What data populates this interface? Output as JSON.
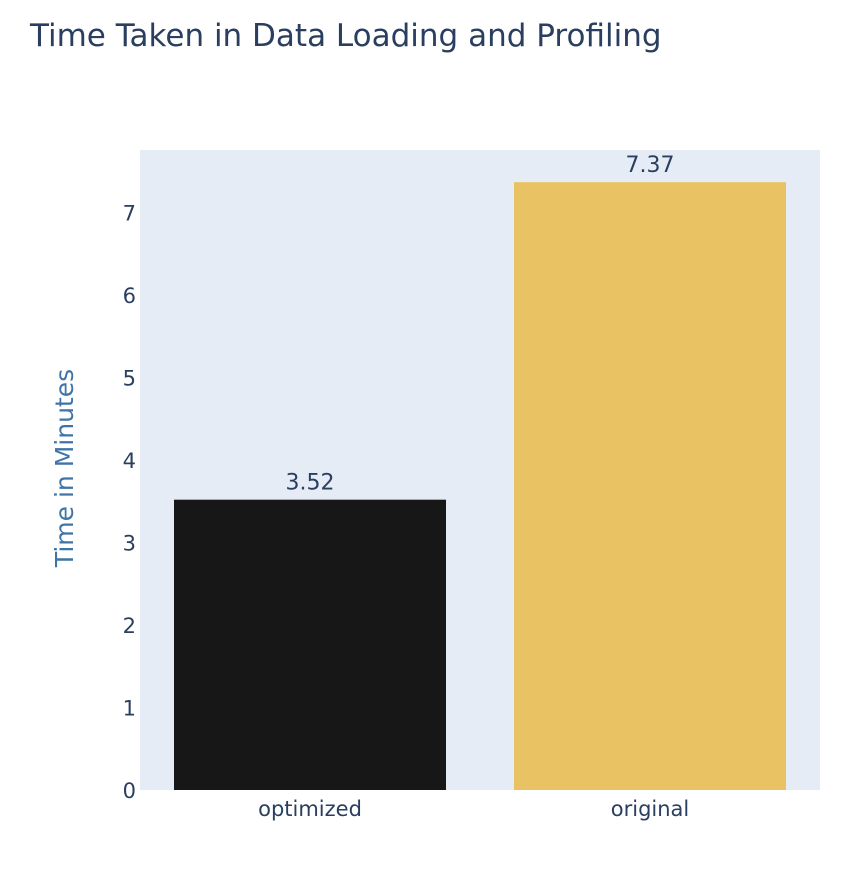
{
  "chart_data": {
    "type": "bar",
    "title": "Time Taken in Data Loading and Profiling",
    "xlabel": "",
    "ylabel": "Time in Minutes",
    "categories": [
      "optimized",
      "original"
    ],
    "values": [
      3.52,
      7.37
    ],
    "data_labels": [
      "3.52",
      "7.37"
    ],
    "colors": [
      "#171717",
      "#e9c363"
    ],
    "ylim": [
      0,
      7.76
    ],
    "yticks": [
      0,
      1,
      2,
      3,
      4,
      5,
      6,
      7
    ],
    "grid": false,
    "legend": "none",
    "plot_background": "#e5ecf6"
  }
}
